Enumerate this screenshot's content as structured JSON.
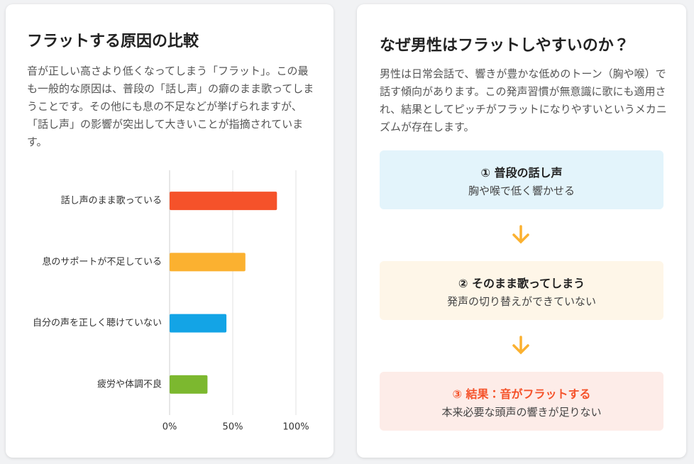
{
  "left": {
    "title": "フラットする原因の比較",
    "text": "音が正しい高さより低くなってしまう「フラット」。この最も一般的な原因は、普段の「話し声」の癖のまま歌ってしまうことです。その他にも息の不足などが挙げられますが、「話し声」の影響が突出して大きいことが指摘されています。"
  },
  "chart_data": {
    "type": "hbar",
    "categories": [
      "話し声のまま歌っている",
      "息のサポートが不足している",
      "自分の声を正しく聴けていない",
      "疲労や体調不良"
    ],
    "values": [
      85,
      60,
      45,
      30
    ],
    "colors": [
      "#f5522a",
      "#fbb130",
      "#13a4e6",
      "#7cb82f"
    ],
    "xlim": [
      0,
      100
    ],
    "xticks": [
      {
        "value": 0,
        "label": "0%"
      },
      {
        "value": 50,
        "label": "50%"
      },
      {
        "value": 100,
        "label": "100%"
      }
    ],
    "grid": true
  },
  "right": {
    "title": "なぜ男性はフラットしやすいのか？",
    "text": "男性は日常会話で、響きが豊かな低めのトーン（胸や喉）で話す傾向があります。この発声習慣が無意識に歌にも適用され、結果としてピッチがフラットになりやすいというメカニズムが存在します。",
    "steps": [
      {
        "label": "① 普段の話し声",
        "sub": "胸や喉で低く響かせる"
      },
      {
        "label": "② そのまま歌ってしまう",
        "sub": "発声の切り替えができていない"
      },
      {
        "label": "③ 結果：音がフラットする",
        "sub": "本来必要な頭声の響きが足りない"
      }
    ]
  }
}
